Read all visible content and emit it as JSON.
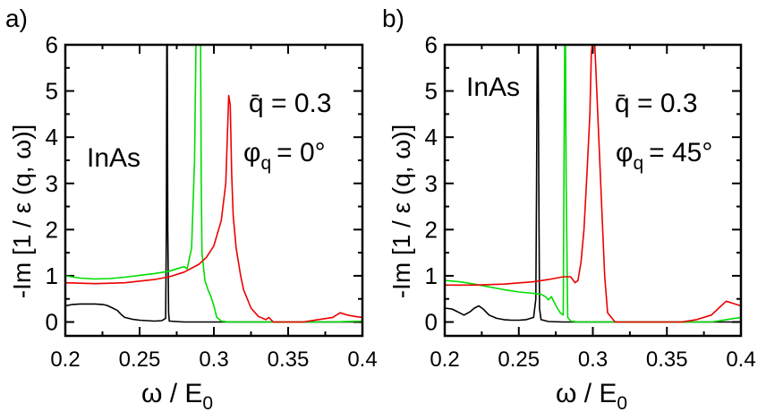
{
  "chart_data": [
    {
      "type": "line",
      "panel_label": "a)",
      "xlabel": "ω / E",
      "xlabel_sub": "0",
      "ylabel": "-Im [1 / ε (q, ω)]",
      "xlim": [
        0.2,
        0.4
      ],
      "ylim": [
        -0.3,
        6
      ],
      "xticks": [
        "0.2",
        "0.25",
        "0.3",
        "0.35",
        "0.4"
      ],
      "yticks": [
        "0",
        "1",
        "2",
        "3",
        "4",
        "5",
        "6"
      ],
      "grid": false,
      "annotations": {
        "material": "InAs",
        "q_label": "q̄ = 0.3",
        "phi_symbol": "φ",
        "phi_sub": "q",
        "phi_value": "= 0°"
      },
      "series": [
        {
          "name": "black",
          "color": "#000000",
          "x": [
            0.2,
            0.205,
            0.21,
            0.215,
            0.22,
            0.225,
            0.228,
            0.232,
            0.235,
            0.238,
            0.24,
            0.245,
            0.25,
            0.255,
            0.26,
            0.265,
            0.2675,
            0.268,
            0.2683,
            0.2686,
            0.269,
            0.2695,
            0.27,
            0.275,
            0.28,
            0.3,
            0.35,
            0.4
          ],
          "y": [
            0.35,
            0.38,
            0.39,
            0.39,
            0.39,
            0.38,
            0.36,
            0.3,
            0.25,
            0.15,
            0.1,
            0.06,
            0.04,
            0.03,
            0.02,
            0.03,
            0.08,
            2.0,
            6.2,
            6.2,
            2.0,
            0.2,
            0.02,
            0.01,
            0.0,
            0.0,
            0.0,
            0.0
          ]
        },
        {
          "name": "green",
          "color": "#00dd00",
          "x": [
            0.2,
            0.21,
            0.22,
            0.23,
            0.24,
            0.25,
            0.26,
            0.27,
            0.275,
            0.28,
            0.282,
            0.285,
            0.287,
            0.288,
            0.289,
            0.29,
            0.291,
            0.2915,
            0.292,
            0.294,
            0.296,
            0.298,
            0.3,
            0.302,
            0.305,
            0.31,
            0.33,
            0.35,
            0.38,
            0.4
          ],
          "y": [
            1.0,
            0.95,
            0.93,
            0.94,
            0.97,
            1.01,
            1.05,
            1.1,
            1.15,
            1.2,
            1.15,
            1.6,
            3.5,
            6.2,
            6.2,
            6.2,
            6.2,
            3.0,
            1.5,
            0.9,
            0.7,
            0.55,
            0.35,
            0.1,
            0.02,
            0.0,
            0.0,
            0.0,
            0.0,
            0.02
          ]
        },
        {
          "name": "red",
          "color": "#ee0000",
          "x": [
            0.2,
            0.22,
            0.24,
            0.26,
            0.27,
            0.28,
            0.29,
            0.295,
            0.3,
            0.305,
            0.308,
            0.31,
            0.311,
            0.312,
            0.313,
            0.315,
            0.318,
            0.32,
            0.325,
            0.33,
            0.335,
            0.337,
            0.34,
            0.36,
            0.37,
            0.38,
            0.385,
            0.39,
            0.395,
            0.4
          ],
          "y": [
            0.85,
            0.83,
            0.85,
            0.92,
            0.98,
            1.08,
            1.25,
            1.4,
            1.65,
            2.2,
            3.0,
            4.9,
            4.7,
            3.2,
            2.3,
            1.6,
            1.0,
            0.7,
            0.3,
            0.12,
            0.05,
            0.1,
            0.0,
            0.0,
            0.05,
            0.1,
            0.2,
            0.15,
            0.12,
            0.1
          ]
        }
      ]
    },
    {
      "type": "line",
      "panel_label": "b)",
      "xlabel": "ω / E",
      "xlabel_sub": "0",
      "ylabel": "-Im [1 / ε (q, ω)]",
      "xlim": [
        0.2,
        0.4
      ],
      "ylim": [
        -0.3,
        6
      ],
      "xticks": [
        "0.2",
        "0.25",
        "0.3",
        "0.35",
        "0.4"
      ],
      "yticks": [
        "0",
        "1",
        "2",
        "3",
        "4",
        "5",
        "6"
      ],
      "grid": false,
      "annotations": {
        "material": "InAs",
        "q_label": "q̄ = 0.3",
        "phi_symbol": "φ",
        "phi_sub": "q",
        "phi_value": "= 45°"
      },
      "series": [
        {
          "name": "black",
          "color": "#000000",
          "x": [
            0.2,
            0.205,
            0.21,
            0.213,
            0.217,
            0.22,
            0.223,
            0.226,
            0.23,
            0.235,
            0.24,
            0.245,
            0.25,
            0.255,
            0.26,
            0.2615,
            0.262,
            0.2625,
            0.263,
            0.2635,
            0.264,
            0.265,
            0.27,
            0.28,
            0.3,
            0.35,
            0.4
          ],
          "y": [
            0.3,
            0.28,
            0.2,
            0.15,
            0.22,
            0.3,
            0.35,
            0.28,
            0.15,
            0.08,
            0.05,
            0.04,
            0.04,
            0.05,
            0.1,
            0.5,
            3.0,
            6.2,
            6.2,
            3.0,
            0.3,
            0.05,
            0.01,
            0.0,
            0.0,
            0.0,
            0.0
          ]
        },
        {
          "name": "green",
          "color": "#00dd00",
          "x": [
            0.2,
            0.21,
            0.22,
            0.23,
            0.24,
            0.25,
            0.26,
            0.265,
            0.268,
            0.27,
            0.272,
            0.274,
            0.276,
            0.278,
            0.28,
            0.2805,
            0.281,
            0.2815,
            0.282,
            0.283,
            0.285,
            0.29,
            0.3,
            0.35,
            0.38,
            0.39,
            0.4
          ],
          "y": [
            0.9,
            0.87,
            0.82,
            0.76,
            0.7,
            0.65,
            0.62,
            0.6,
            0.55,
            0.48,
            0.55,
            0.42,
            0.3,
            0.2,
            0.15,
            3.0,
            6.2,
            6.2,
            3.0,
            0.1,
            0.02,
            0.0,
            0.0,
            0.0,
            0.0,
            0.05,
            0.1
          ]
        },
        {
          "name": "red",
          "color": "#ee0000",
          "x": [
            0.2,
            0.22,
            0.24,
            0.26,
            0.27,
            0.28,
            0.285,
            0.288,
            0.29,
            0.292,
            0.294,
            0.296,
            0.298,
            0.299,
            0.3,
            0.301,
            0.302,
            0.304,
            0.306,
            0.308,
            0.31,
            0.315,
            0.33,
            0.36,
            0.37,
            0.38,
            0.385,
            0.39,
            0.395,
            0.4
          ],
          "y": [
            0.8,
            0.8,
            0.82,
            0.87,
            0.92,
            0.98,
            0.98,
            0.85,
            0.9,
            1.3,
            2.0,
            3.2,
            4.5,
            5.8,
            6.2,
            6.2,
            5.5,
            4.0,
            2.5,
            1.0,
            0.2,
            0.0,
            0.0,
            0.0,
            0.05,
            0.15,
            0.3,
            0.45,
            0.4,
            0.35
          ]
        }
      ]
    }
  ]
}
